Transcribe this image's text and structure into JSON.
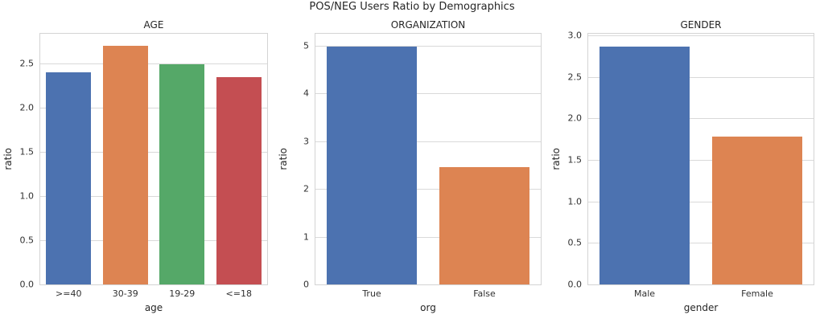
{
  "figure": {
    "title": "POS/NEG Users Ratio by Demographics",
    "colors": {
      "background": "#ffffff",
      "text": "#262626",
      "grid": "#d9d9d9",
      "spine": "#d4d4d4"
    }
  },
  "chart_data": [
    {
      "type": "bar",
      "title": "AGE",
      "xlabel": "age",
      "ylabel": "ratio",
      "categories": [
        ">=40",
        "30-39",
        "19-29",
        "<=18"
      ],
      "values": [
        2.4,
        2.7,
        2.49,
        2.35
      ],
      "colors": [
        "#4c72b0",
        "#dd8452",
        "#55a868",
        "#c44e52"
      ],
      "ylim": [
        0,
        2.84
      ],
      "yticks": [
        0,
        0.5,
        1,
        1.5,
        2,
        2.5
      ],
      "ytick_labels": [
        "0.0",
        "0.5",
        "1.0",
        "1.5",
        "2.0",
        "2.5"
      ],
      "grid": true,
      "legend": false,
      "bar_width_fraction": 0.8
    },
    {
      "type": "bar",
      "title": "ORGANIZATION",
      "xlabel": "org",
      "ylabel": "ratio",
      "categories": [
        "True",
        "False"
      ],
      "values": [
        4.98,
        2.45
      ],
      "colors": [
        "#4c72b0",
        "#dd8452"
      ],
      "ylim": [
        0,
        5.25
      ],
      "yticks": [
        0,
        1,
        2,
        3,
        4,
        5
      ],
      "ytick_labels": [
        "0",
        "1",
        "2",
        "3",
        "4",
        "5"
      ],
      "grid": true,
      "legend": false,
      "bar_width_fraction": 0.8
    },
    {
      "type": "bar",
      "title": "GENDER",
      "xlabel": "gender",
      "ylabel": "ratio",
      "categories": [
        "Male",
        "Female"
      ],
      "values": [
        2.87,
        1.78
      ],
      "colors": [
        "#4c72b0",
        "#dd8452"
      ],
      "ylim": [
        0,
        3.02
      ],
      "yticks": [
        0,
        0.5,
        1,
        1.5,
        2,
        2.5,
        3
      ],
      "ytick_labels": [
        "0.0",
        "0.5",
        "1.0",
        "1.5",
        "2.0",
        "2.5",
        "3.0"
      ],
      "grid": true,
      "legend": false,
      "bar_width_fraction": 0.8
    }
  ]
}
